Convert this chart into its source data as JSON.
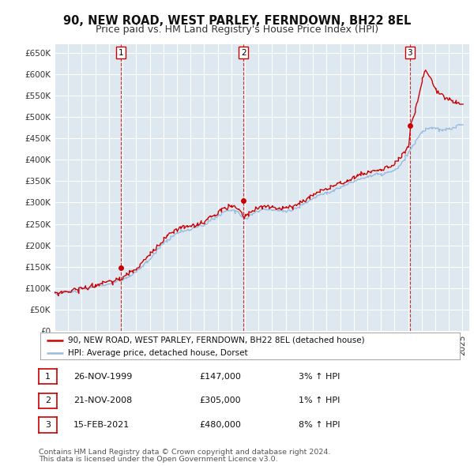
{
  "title": "90, NEW ROAD, WEST PARLEY, FERNDOWN, BH22 8EL",
  "subtitle": "Price paid vs. HM Land Registry's House Price Index (HPI)",
  "ylim": [
    0,
    670000
  ],
  "yticks": [
    0,
    50000,
    100000,
    150000,
    200000,
    250000,
    300000,
    350000,
    400000,
    450000,
    500000,
    550000,
    600000,
    650000
  ],
  "ytick_labels": [
    "£0",
    "£50K",
    "£100K",
    "£150K",
    "£200K",
    "£250K",
    "£300K",
    "£350K",
    "£400K",
    "£450K",
    "£500K",
    "£550K",
    "£600K",
    "£650K"
  ],
  "sale_prices": [
    147000,
    305000,
    480000
  ],
  "sale_labels": [
    "1",
    "2",
    "3"
  ],
  "sale_date_labels": [
    "26-NOV-1999",
    "21-NOV-2008",
    "15-FEB-2021"
  ],
  "row_prices": [
    "£147,000",
    "£305,000",
    "£480,000"
  ],
  "row_pcts": [
    "3% ↑ HPI",
    "1% ↑ HPI",
    "8% ↑ HPI"
  ],
  "property_color": "#cc0000",
  "hpi_color": "#99bbdd",
  "chart_bg": "#dde8f0",
  "background_color": "#ffffff",
  "grid_color": "#ffffff",
  "legend_property": "90, NEW ROAD, WEST PARLEY, FERNDOWN, BH22 8EL (detached house)",
  "legend_hpi": "HPI: Average price, detached house, Dorset",
  "footer1": "Contains HM Land Registry data © Crown copyright and database right 2024.",
  "footer2": "This data is licensed under the Open Government Licence v3.0.",
  "title_fontsize": 10.5,
  "subtitle_fontsize": 9
}
